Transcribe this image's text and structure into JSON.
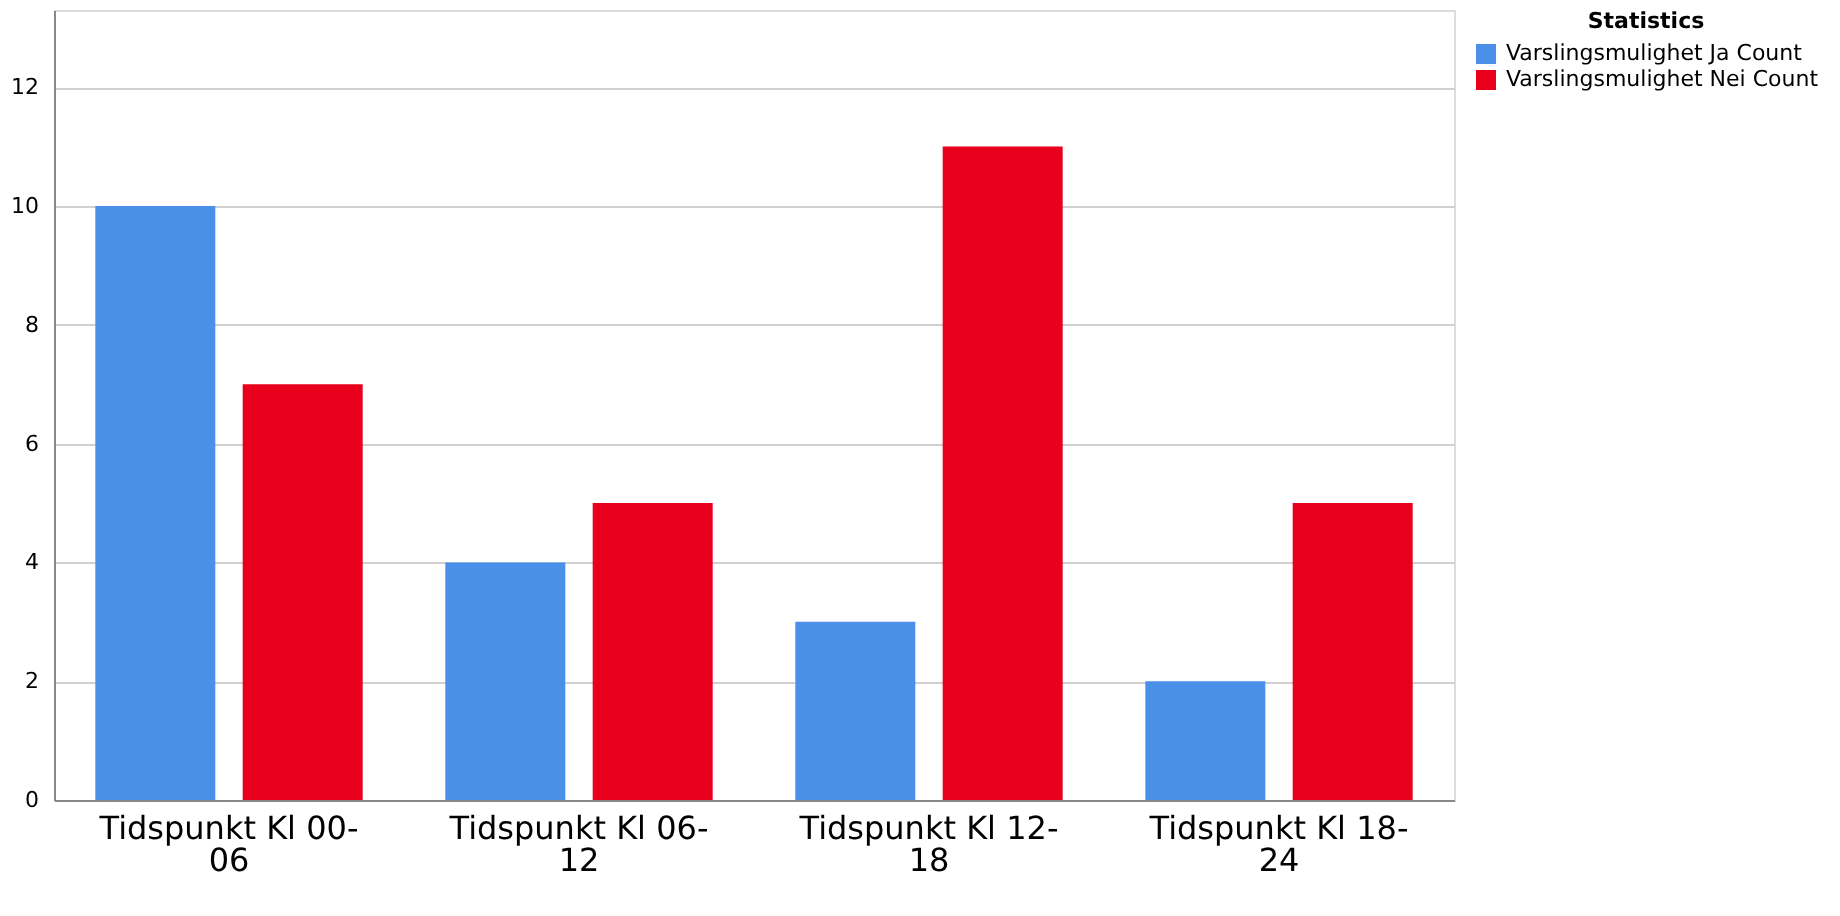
{
  "chart_data": {
    "type": "bar",
    "legend_title": "Statistics",
    "categories": [
      "Tidspunkt Kl 00-06",
      "Tidspunkt Kl 06-12",
      "Tidspunkt Kl 12-18",
      "Tidspunkt Kl 18-24"
    ],
    "series": [
      {
        "name": "Varslingsmulighet Ja Count",
        "color": "#4a90e8",
        "values": [
          10,
          4,
          3,
          2
        ]
      },
      {
        "name": "Varslingsmulighet Nei Count",
        "color": "#e8001c",
        "values": [
          7,
          5,
          11,
          5
        ]
      }
    ],
    "ylim": [
      0,
      13.3
    ],
    "yticks": [
      0,
      2,
      4,
      6,
      8,
      10,
      12
    ],
    "grid": "y",
    "legend": "top right"
  }
}
